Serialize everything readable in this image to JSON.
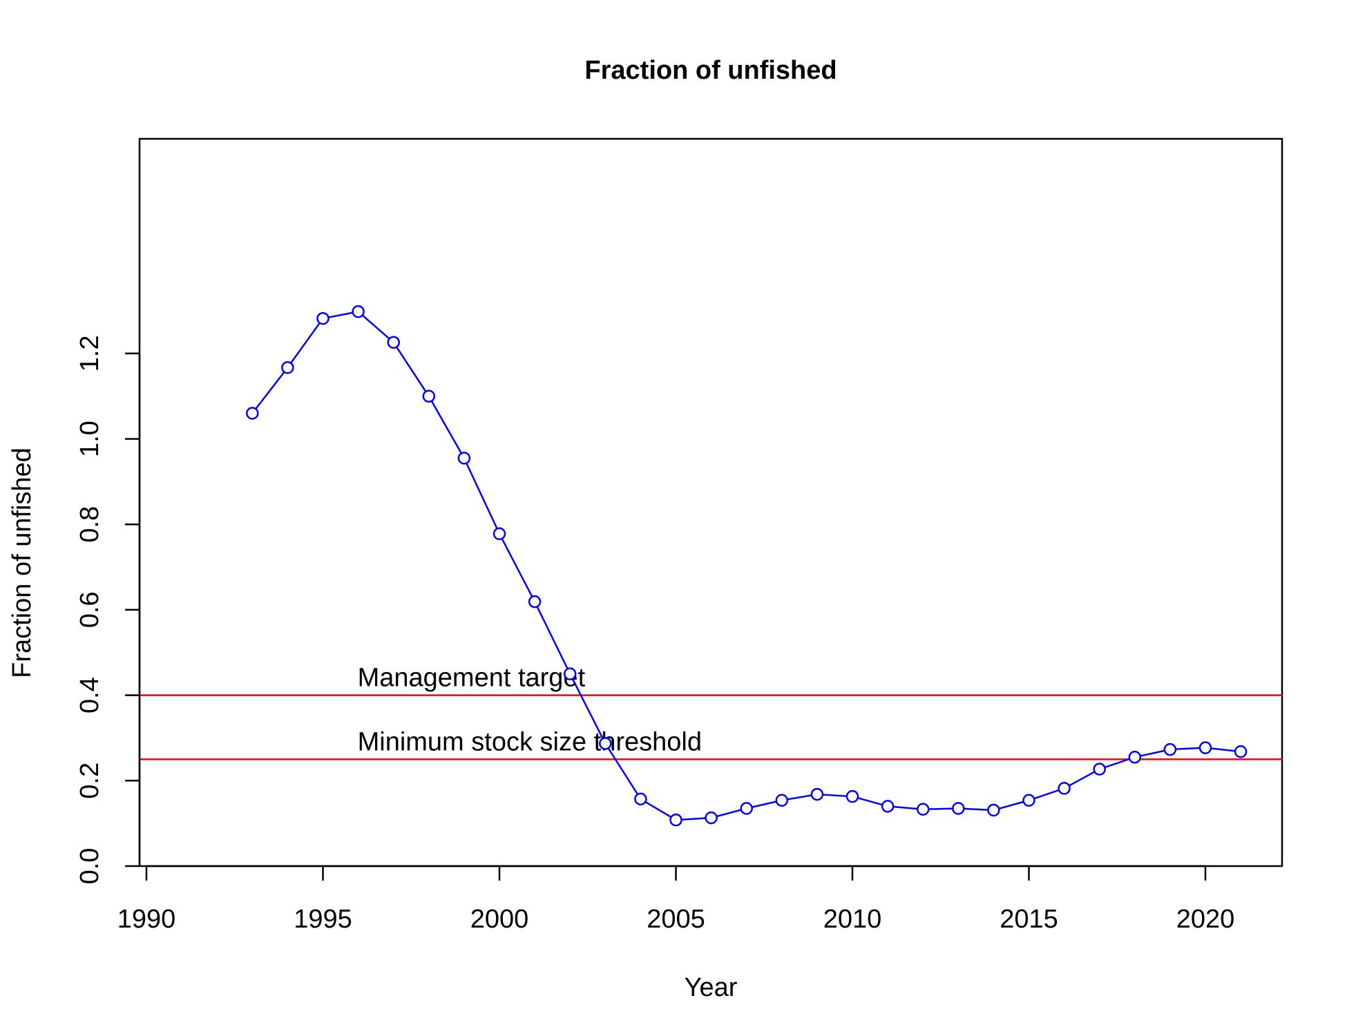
{
  "chart_data": {
    "type": "line",
    "title": "Fraction of unfished",
    "xlabel": "Year",
    "ylabel": "Fraction of unfished",
    "xlim": [
      1990,
      2022
    ],
    "ylim": [
      0,
      1.3
    ],
    "x_ticks": [
      1990,
      1995,
      2000,
      2005,
      2010,
      2015,
      2020
    ],
    "x_tick_labels": [
      "1990",
      "1995",
      "2000",
      "2005",
      "2010",
      "2015",
      "2020"
    ],
    "y_ticks": [
      0,
      0.2,
      0.4,
      0.6,
      0.8,
      1.0,
      1.2
    ],
    "y_tick_labels": [
      "0.0",
      "0.2",
      "0.4",
      "0.6",
      "0.8",
      "1.0",
      "1.2"
    ],
    "grid": false,
    "series": [
      {
        "color": "#0000ff",
        "marker": "open-circle",
        "x": [
          1993,
          1994,
          1995,
          1996,
          1997,
          1998,
          1999,
          2000,
          2001,
          2002,
          2003,
          2004,
          2005,
          2006,
          2007,
          2008,
          2009,
          2010,
          2011,
          2012,
          2013,
          2014,
          2015,
          2016,
          2017,
          2018,
          2019,
          2020,
          2021
        ],
        "values": [
          1.06,
          1.167,
          1.282,
          1.298,
          1.226,
          1.1,
          0.955,
          0.778,
          0.619,
          0.45,
          0.287,
          0.157,
          0.108,
          0.113,
          0.135,
          0.154,
          0.168,
          0.163,
          0.14,
          0.133,
          0.135,
          0.131,
          0.154,
          0.182,
          0.227,
          0.255,
          0.273,
          0.277,
          0.268
        ]
      }
    ],
    "reference_lines": [
      {
        "y": 0.4,
        "label": "Management target",
        "label_x": 1996,
        "color": "#ff0000"
      },
      {
        "y": 0.25,
        "label": "Minimum stock size threshold",
        "label_x": 1996,
        "color": "#ff0000"
      }
    ]
  }
}
